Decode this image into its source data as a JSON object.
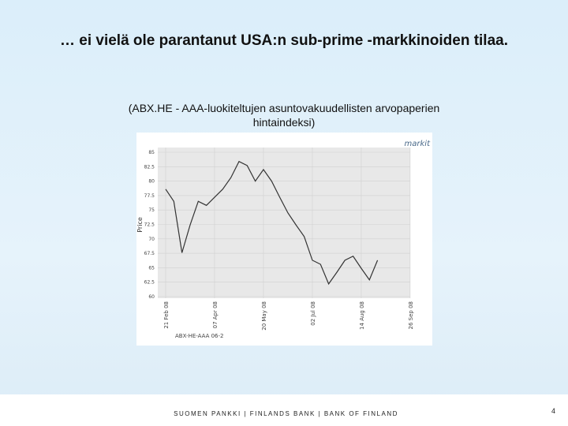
{
  "slide": {
    "title": "… ei vielä ole parantanut USA:n sub-prime -markkinoiden tilaa.",
    "subtitle": "(ABX.HE - AAA-luokiteltujen asuntovakuudellisten arvopaperien hintaindeksi)",
    "footer": "SUOMEN PANKKI | FINLANDS BANK | BANK OF FINLAND",
    "page_number": "4"
  },
  "chart_data": {
    "type": "line",
    "logo": "markit",
    "y_label": "Price",
    "categories": [
      "21 Feb 08",
      null,
      null,
      null,
      null,
      null,
      "07 Apr 08",
      null,
      null,
      null,
      null,
      null,
      "20 May 08",
      null,
      null,
      null,
      null,
      null,
      "02 Jul 08",
      null,
      null,
      null,
      null,
      null,
      "14 Aug 08",
      null,
      null,
      null,
      null,
      null,
      "26 Sep 08"
    ],
    "series": [
      {
        "name": "ABX-HE-AAA 06-2",
        "color": "#333333",
        "values": [
          78.6,
          76.5,
          67.6,
          72.4,
          76.5,
          75.8,
          77.2,
          78.6,
          80.6,
          83.4,
          82.7,
          80,
          82,
          80,
          77.2,
          74.5,
          72.4,
          70.4,
          66.3,
          65.6,
          62.2,
          64.2,
          66.3,
          67,
          64.9,
          62.9,
          66.3,
          null,
          null,
          null,
          null
        ]
      }
    ],
    "ylim": [
      60,
      85
    ],
    "yticks": [
      60,
      62.5,
      65,
      67.5,
      70,
      72.5,
      75,
      77.5,
      80,
      82.5,
      85
    ],
    "grid": true
  }
}
